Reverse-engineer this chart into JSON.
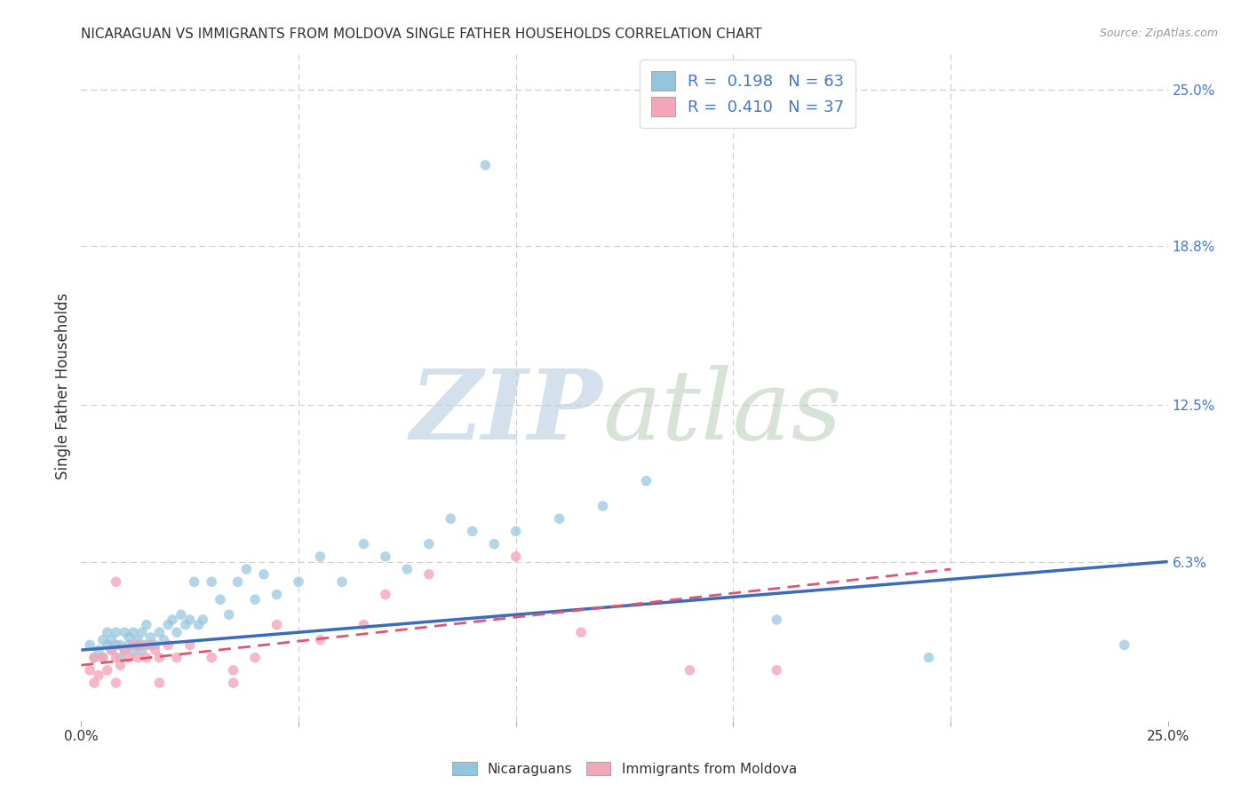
{
  "title": "NICARAGUAN VS IMMIGRANTS FROM MOLDOVA SINGLE FATHER HOUSEHOLDS CORRELATION CHART",
  "source": "Source: ZipAtlas.com",
  "ylabel": "Single Father Households",
  "xlim": [
    0.0,
    0.25
  ],
  "ylim": [
    0.0,
    0.265
  ],
  "ytick_labels_right": [
    "25.0%",
    "18.8%",
    "12.5%",
    "6.3%"
  ],
  "ytick_values_right": [
    0.25,
    0.188,
    0.125,
    0.063
  ],
  "blue_color": "#92c5de",
  "pink_color": "#f4a6b8",
  "blue_line_color": "#3a6bbf",
  "pink_line_color": "#e05570",
  "blue_scatter_x": [
    0.002,
    0.003,
    0.004,
    0.005,
    0.005,
    0.006,
    0.006,
    0.007,
    0.007,
    0.008,
    0.008,
    0.009,
    0.009,
    0.01,
    0.01,
    0.011,
    0.011,
    0.012,
    0.012,
    0.013,
    0.013,
    0.014,
    0.014,
    0.015,
    0.015,
    0.016,
    0.017,
    0.018,
    0.019,
    0.02,
    0.021,
    0.022,
    0.023,
    0.024,
    0.025,
    0.026,
    0.027,
    0.028,
    0.03,
    0.032,
    0.034,
    0.036,
    0.038,
    0.04,
    0.042,
    0.045,
    0.05,
    0.055,
    0.06,
    0.065,
    0.07,
    0.075,
    0.08,
    0.085,
    0.09,
    0.095,
    0.1,
    0.11,
    0.12,
    0.13,
    0.16,
    0.195,
    0.24
  ],
  "blue_scatter_y": [
    0.03,
    0.025,
    0.028,
    0.025,
    0.032,
    0.03,
    0.035,
    0.028,
    0.032,
    0.03,
    0.035,
    0.025,
    0.03,
    0.028,
    0.035,
    0.03,
    0.033,
    0.028,
    0.035,
    0.03,
    0.032,
    0.028,
    0.035,
    0.03,
    0.038,
    0.033,
    0.03,
    0.035,
    0.032,
    0.038,
    0.04,
    0.035,
    0.042,
    0.038,
    0.04,
    0.055,
    0.038,
    0.04,
    0.055,
    0.048,
    0.042,
    0.055,
    0.06,
    0.048,
    0.058,
    0.05,
    0.055,
    0.065,
    0.055,
    0.07,
    0.065,
    0.06,
    0.07,
    0.08,
    0.075,
    0.07,
    0.075,
    0.08,
    0.085,
    0.095,
    0.04,
    0.025,
    0.03
  ],
  "blue_outlier_x": [
    0.093
  ],
  "blue_outlier_y": [
    0.22
  ],
  "pink_scatter_x": [
    0.002,
    0.003,
    0.004,
    0.005,
    0.006,
    0.007,
    0.008,
    0.008,
    0.009,
    0.01,
    0.011,
    0.012,
    0.013,
    0.014,
    0.015,
    0.016,
    0.017,
    0.018,
    0.02,
    0.022,
    0.025,
    0.03,
    0.035,
    0.04,
    0.045,
    0.055,
    0.065,
    0.08,
    0.1,
    0.115,
    0.14,
    0.16,
    0.003,
    0.008,
    0.018,
    0.035,
    0.07
  ],
  "pink_scatter_y": [
    0.02,
    0.025,
    0.018,
    0.025,
    0.02,
    0.028,
    0.025,
    0.055,
    0.022,
    0.028,
    0.025,
    0.03,
    0.025,
    0.03,
    0.025,
    0.03,
    0.028,
    0.025,
    0.03,
    0.025,
    0.03,
    0.025,
    0.02,
    0.025,
    0.038,
    0.032,
    0.038,
    0.058,
    0.065,
    0.035,
    0.02,
    0.02,
    0.015,
    0.015,
    0.015,
    0.015,
    0.05
  ],
  "blue_trend_x": [
    0.0,
    0.25
  ],
  "blue_trend_y": [
    0.028,
    0.063
  ],
  "pink_trend_x": [
    0.0,
    0.2
  ],
  "pink_trend_y": [
    0.022,
    0.06
  ]
}
